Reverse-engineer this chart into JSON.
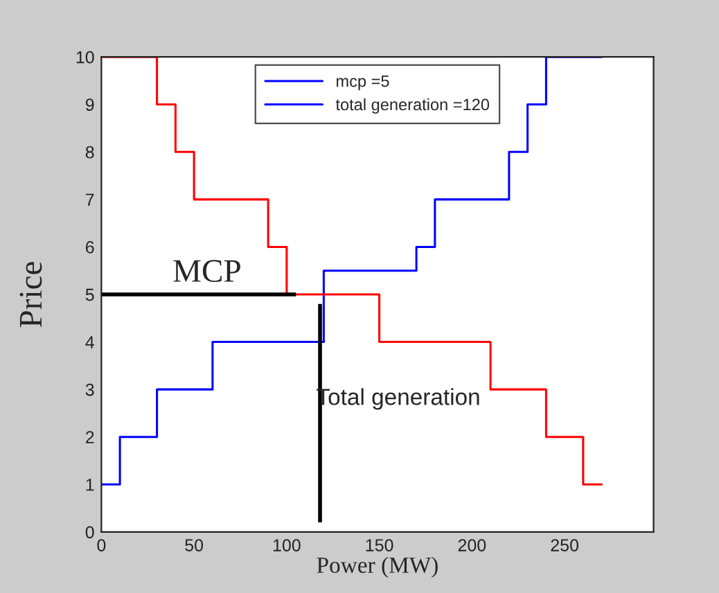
{
  "chart_data": {
    "type": "step",
    "xlabel": "Power (MW)",
    "ylabel": "Price",
    "xlim": [
      0,
      298
    ],
    "xticks": [
      0,
      50,
      100,
      150,
      200,
      250
    ],
    "ylim": [
      0,
      10
    ],
    "yticks": [
      0,
      1,
      2,
      3,
      4,
      5,
      6,
      7,
      8,
      9,
      10
    ],
    "grid": false,
    "legend": "top",
    "series": [
      {
        "name": "mcp =5",
        "color": "#0000ff",
        "x": [
          0,
          10,
          30,
          60,
          120
        ],
        "values": [
          1,
          2,
          3,
          4,
          4
        ]
      },
      {
        "name": "total generation =120",
        "color": "#0000ff",
        "x": [
          120,
          120,
          170,
          180,
          220,
          230,
          240,
          270
        ],
        "values": [
          4,
          5.5,
          6,
          7,
          8,
          9,
          10,
          10
        ]
      },
      {
        "color": "#ff0000",
        "x": [
          0,
          30,
          40,
          50,
          90,
          100,
          150,
          210,
          240,
          260,
          270
        ],
        "values": [
          10,
          9,
          8,
          7,
          6,
          5,
          4,
          3,
          2,
          1,
          1
        ]
      },
      {
        "type": "line",
        "color": "#000000",
        "x": [
          0,
          105
        ],
        "values": [
          5,
          5
        ]
      },
      {
        "type": "line",
        "color": "#000000",
        "x": [
          118,
          118
        ],
        "values": [
          0.2,
          4.8
        ]
      }
    ],
    "annotations": [
      {
        "text": "MCP",
        "x": 57,
        "y": 5
      },
      {
        "text": "Total generation",
        "x": 118,
        "y": 2.8
      }
    ]
  }
}
